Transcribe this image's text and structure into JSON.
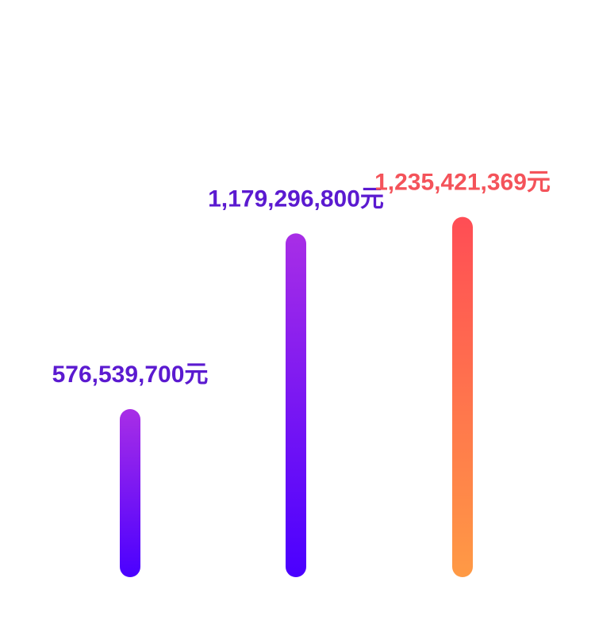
{
  "chart_data": {
    "type": "bar",
    "categories": [
      "",
      "",
      ""
    ],
    "values": [
      576539700,
      1179296800,
      1235421369
    ],
    "value_labels": [
      "576,539,700元",
      "1,179,296,800元",
      "1,235,421,369元"
    ],
    "ylim": [
      0,
      1550000000
    ],
    "grid": false,
    "axes_visible": false,
    "colors": [
      {
        "top": "#A82EE6",
        "bottom": "#4A00FF",
        "label": "#5B1AD0"
      },
      {
        "top": "#A82EE6",
        "bottom": "#4A00FF",
        "label": "#5B1AD0"
      },
      {
        "top": "#FF4D55",
        "bottom": "#FF9A45",
        "label": "#F4535A"
      }
    ]
  }
}
